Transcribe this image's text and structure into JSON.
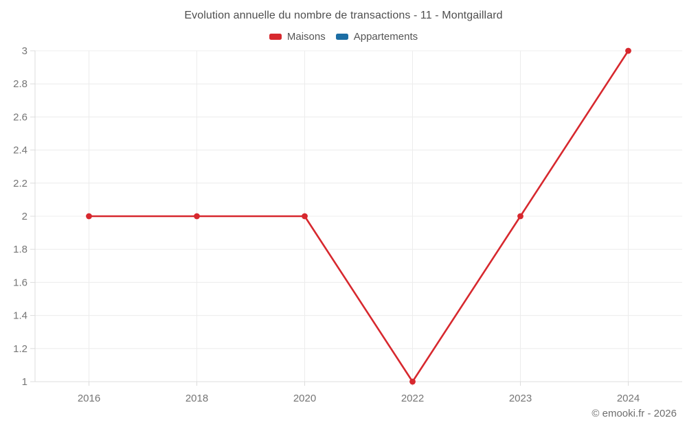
{
  "title": "Evolution annuelle du nombre de transactions - 11 - Montgaillard",
  "legend": [
    {
      "label": "Maisons",
      "color": "#d7282e"
    },
    {
      "label": "Appartements",
      "color": "#1c6ea4"
    }
  ],
  "footer": "© emooki.fr - 2026",
  "colors": {
    "background": "#ffffff",
    "grid": "#ececec",
    "axis": "#dcdcdc",
    "tick_text": "#757575",
    "title_text": "#4e4e4e",
    "legend_text": "#545454",
    "maisons": "#d7282e",
    "appartements": "#1c6ea4"
  },
  "chart_data": {
    "type": "line",
    "title": "Evolution annuelle du nombre de transactions - 11 - Montgaillard",
    "categories": [
      "2016",
      "2018",
      "2020",
      "2022",
      "2023",
      "2024"
    ],
    "series": [
      {
        "name": "Maisons",
        "color": "#d7282e",
        "values": [
          2,
          2,
          2,
          1,
          2,
          3
        ]
      },
      {
        "name": "Appartements",
        "color": "#1c6ea4",
        "values": []
      }
    ],
    "xlabel": "",
    "ylabel": "",
    "ylim": [
      1,
      3
    ],
    "yticks": [
      1,
      1.2,
      1.4,
      1.6,
      1.8,
      2,
      2.2,
      2.4,
      2.6,
      2.8,
      3
    ],
    "ytick_labels": [
      "1",
      "1.2",
      "1.4",
      "1.6",
      "1.8",
      "2",
      "2.2",
      "2.4",
      "2.6",
      "2.8",
      "3"
    ],
    "grid": true,
    "legend_position": "top",
    "marker": "circle"
  }
}
